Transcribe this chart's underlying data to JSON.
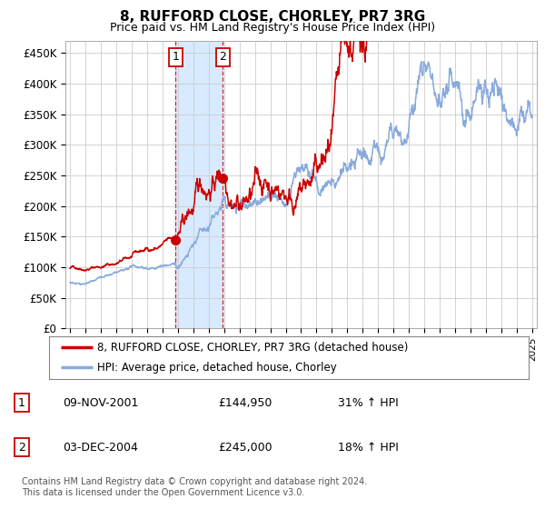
{
  "title": "8, RUFFORD CLOSE, CHORLEY, PR7 3RG",
  "subtitle": "Price paid vs. HM Land Registry's House Price Index (HPI)",
  "ylabel_ticks": [
    "£0",
    "£50K",
    "£100K",
    "£150K",
    "£200K",
    "£250K",
    "£300K",
    "£350K",
    "£400K",
    "£450K"
  ],
  "ytick_values": [
    0,
    50000,
    100000,
    150000,
    200000,
    250000,
    300000,
    350000,
    400000,
    450000
  ],
  "ylim": [
    0,
    470000
  ],
  "xlim_start": 1994.7,
  "xlim_end": 2025.3,
  "transaction1": {
    "date_num": 2001.86,
    "price": 144950,
    "label": "1"
  },
  "transaction2": {
    "date_num": 2004.92,
    "price": 245000,
    "label": "2"
  },
  "shaded_region": [
    2001.86,
    2004.92
  ],
  "legend_line1": "8, RUFFORD CLOSE, CHORLEY, PR7 3RG (detached house)",
  "legend_line2": "HPI: Average price, detached house, Chorley",
  "table_rows": [
    {
      "num": "1",
      "date": "09-NOV-2001",
      "price": "£144,950",
      "change": "31% ↑ HPI"
    },
    {
      "num": "2",
      "date": "03-DEC-2004",
      "price": "£245,000",
      "change": "18% ↑ HPI"
    }
  ],
  "footer": "Contains HM Land Registry data © Crown copyright and database right 2024.\nThis data is licensed under the Open Government Licence v3.0.",
  "line_color_red": "#cc0000",
  "line_color_blue": "#88aadd",
  "shade_color": "#d8eaff",
  "marker_color_red": "#cc0000",
  "grid_color": "#cccccc",
  "background_color": "#ffffff",
  "title_fontsize": 11,
  "subtitle_fontsize": 9
}
